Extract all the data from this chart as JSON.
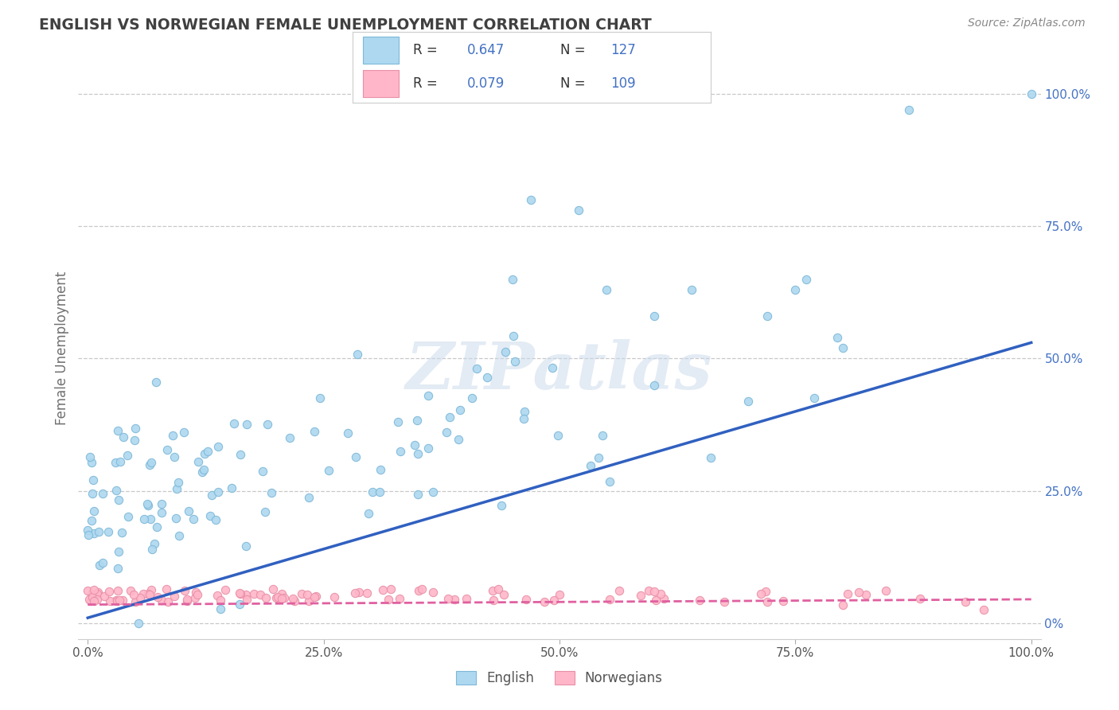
{
  "title": "ENGLISH VS NORWEGIAN FEMALE UNEMPLOYMENT CORRELATION CHART",
  "source": "Source: ZipAtlas.com",
  "ylabel": "Female Unemployment",
  "xlim": [
    -0.01,
    1.01
  ],
  "ylim": [
    -0.03,
    1.07
  ],
  "xticks": [
    0.0,
    0.25,
    0.5,
    0.75,
    1.0
  ],
  "xtick_labels": [
    "0.0%",
    "25.0%",
    "50.0%",
    "75.0%",
    "100.0%"
  ],
  "ytick_vals_right": [
    0.0,
    0.25,
    0.5,
    0.75,
    1.0
  ],
  "ytick_labels_right": [
    "0%",
    "25.0%",
    "50.0%",
    "75.0%",
    "100.0%"
  ],
  "english_fill": "#ADD8F0",
  "english_edge": "#7EB8D8",
  "norwegian_fill": "#FFB6C8",
  "norwegian_edge": "#E890A8",
  "trend_english_color": "#3060C0",
  "trend_norwegian_color": "#E060A0",
  "R_english": 0.647,
  "N_english": 127,
  "R_norwegian": 0.079,
  "N_norwegian": 109,
  "watermark": "ZIPatlas",
  "background_color": "#ffffff",
  "grid_color": "#c8c8c8",
  "title_color": "#404040",
  "label_color": "#707070",
  "stat_color": "#4472C4",
  "trend_eng_x0": 0.0,
  "trend_eng_y0": 0.01,
  "trend_eng_x1": 1.0,
  "trend_eng_y1": 0.53,
  "trend_nor_x0": 0.0,
  "trend_nor_y0": 0.035,
  "trend_nor_x1": 1.0,
  "trend_nor_y1": 0.045
}
